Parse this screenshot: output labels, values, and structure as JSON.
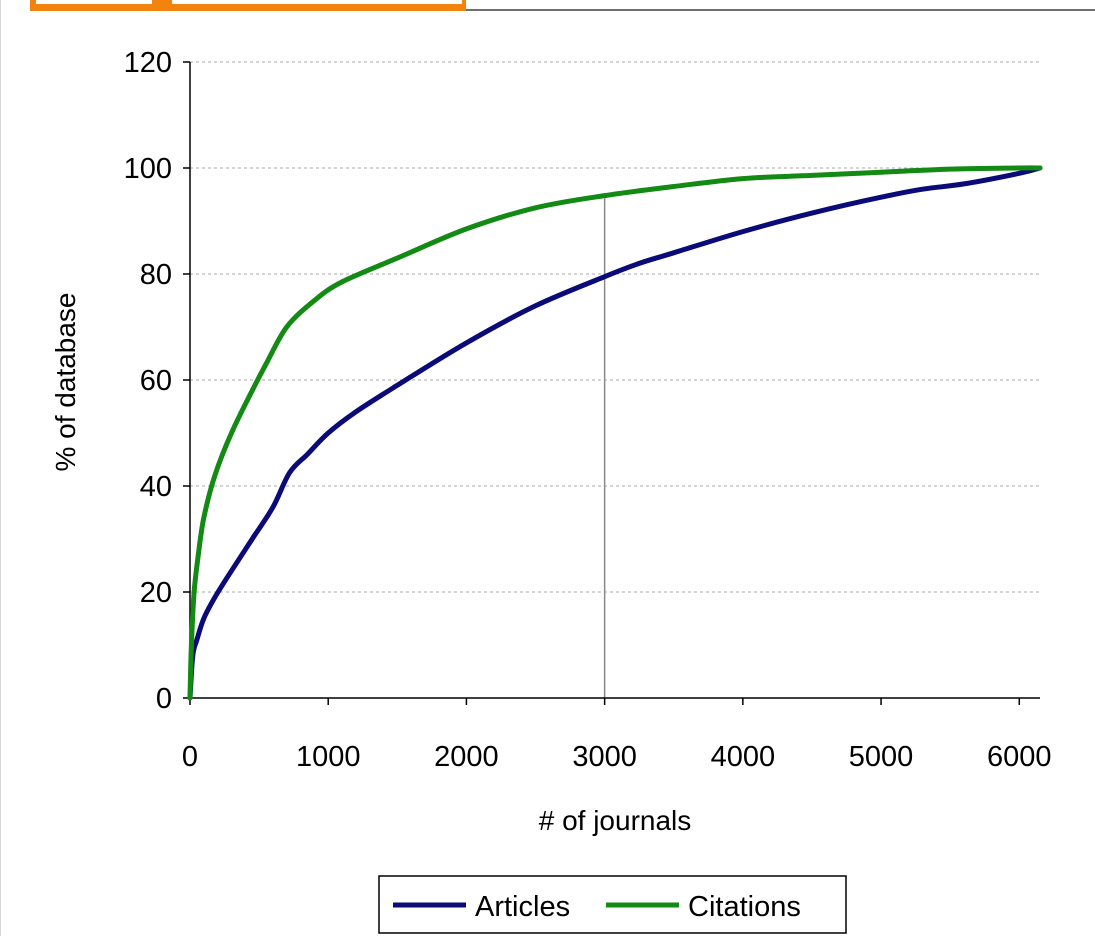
{
  "chart_data": {
    "type": "line",
    "title": "",
    "xlabel": "# of journals",
    "ylabel": "% of database",
    "xlim": [
      0,
      6150
    ],
    "ylim": [
      0,
      120
    ],
    "xticks": [
      0,
      1000,
      2000,
      3000,
      4000,
      5000,
      6000
    ],
    "yticks": [
      0,
      20,
      40,
      60,
      80,
      100,
      120
    ],
    "grid": "horizontal dashed",
    "reference_line_x": 3000,
    "legend_position": "bottom",
    "series": [
      {
        "name": "Articles",
        "color": "#0a0a78",
        "points": [
          [
            0,
            0
          ],
          [
            20,
            8
          ],
          [
            50,
            11
          ],
          [
            100,
            15
          ],
          [
            180,
            19
          ],
          [
            300,
            24
          ],
          [
            450,
            30
          ],
          [
            600,
            36
          ],
          [
            720,
            42.5
          ],
          [
            850,
            46
          ],
          [
            1000,
            50
          ],
          [
            1200,
            54
          ],
          [
            1500,
            59
          ],
          [
            2000,
            67
          ],
          [
            2500,
            74
          ],
          [
            3000,
            79.5
          ],
          [
            3250,
            82
          ],
          [
            3500,
            84
          ],
          [
            4000,
            88
          ],
          [
            4500,
            91.5
          ],
          [
            5000,
            94.5
          ],
          [
            5300,
            96
          ],
          [
            5600,
            97
          ],
          [
            6000,
            99
          ],
          [
            6150,
            100
          ]
        ]
      },
      {
        "name": "Citations",
        "color": "#138a13",
        "points": [
          [
            0,
            0
          ],
          [
            10,
            10
          ],
          [
            30,
            20
          ],
          [
            60,
            27
          ],
          [
            100,
            34
          ],
          [
            180,
            42
          ],
          [
            300,
            50
          ],
          [
            450,
            58
          ],
          [
            550,
            63
          ],
          [
            700,
            70
          ],
          [
            900,
            75
          ],
          [
            1100,
            78.5
          ],
          [
            1500,
            83
          ],
          [
            2000,
            88.5
          ],
          [
            2500,
            92.5
          ],
          [
            3000,
            94.8
          ],
          [
            3500,
            96.5
          ],
          [
            4000,
            98
          ],
          [
            4500,
            98.6
          ],
          [
            5000,
            99.2
          ],
          [
            5500,
            99.8
          ],
          [
            6000,
            100
          ],
          [
            6150,
            100
          ]
        ]
      }
    ]
  }
}
